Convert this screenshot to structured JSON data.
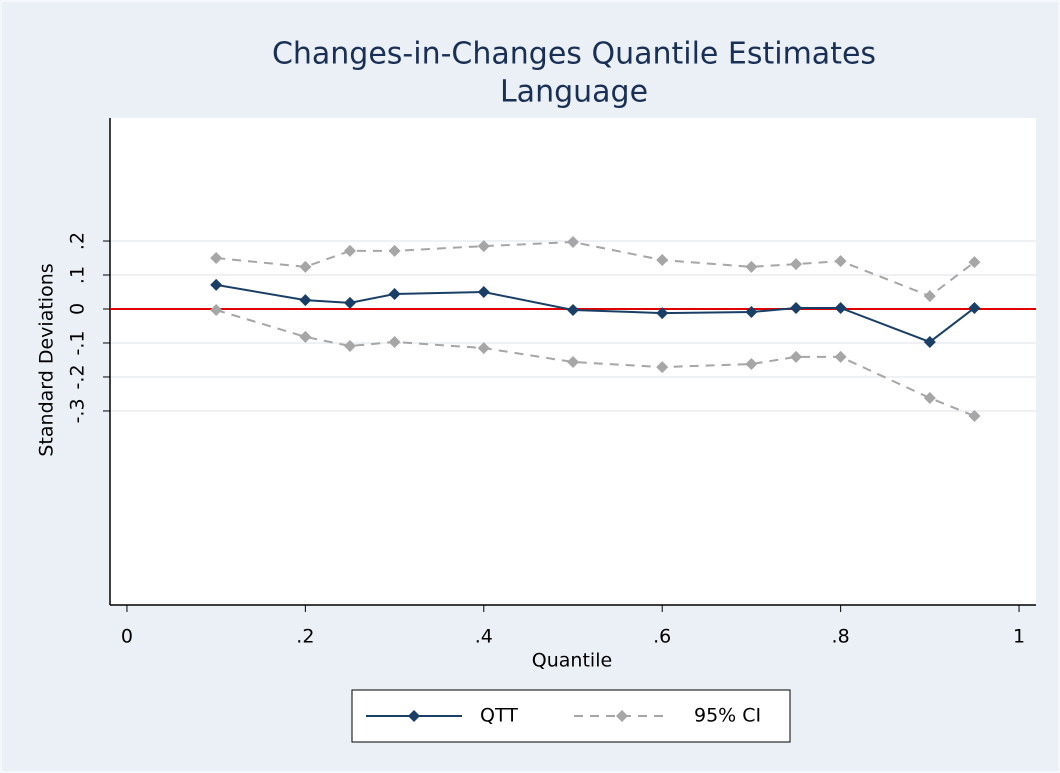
{
  "chart_data": {
    "type": "line",
    "title": "Changes-in-Changes Quantile Estimates",
    "subtitle": "Language",
    "x_label": "Quantile",
    "y_label": "Standard Deviations",
    "x": [
      0.1,
      0.2,
      0.25,
      0.3,
      0.4,
      0.5,
      0.6,
      0.7,
      0.75,
      0.8,
      0.9,
      0.95
    ],
    "series": [
      {
        "name": "QTT",
        "color": "#1a3f66",
        "values": [
          0.071,
          0.026,
          0.018,
          0.044,
          0.05,
          -0.003,
          -0.012,
          -0.009,
          0.003,
          0.003,
          -0.097,
          0.003
        ]
      },
      {
        "name": "95% CI",
        "color": "#a6a6a6",
        "upper": [
          0.15,
          0.124,
          0.171,
          0.171,
          0.185,
          0.197,
          0.144,
          0.124,
          0.132,
          0.141,
          0.038,
          0.138
        ],
        "lower": [
          -0.003,
          -0.082,
          -0.109,
          -0.097,
          -0.115,
          -0.156,
          -0.171,
          -0.162,
          -0.141,
          -0.141,
          -0.262,
          -0.315
        ]
      }
    ],
    "xlim": [
      -0.019,
      1.019
    ],
    "xticks": [
      0,
      {
        "value": 0.2,
        "label": ".2"
      },
      {
        "value": 0.4,
        "label": ".4"
      },
      {
        "value": 0.6,
        "label": ".6"
      },
      {
        "value": 0.8,
        "label": ".8"
      },
      1
    ],
    "ylim": [
      -0.871,
      0.562
    ],
    "yticks": [
      {
        "value": -0.3,
        "label": "-.3"
      },
      {
        "value": -0.2,
        "label": "-.2"
      },
      {
        "value": -0.1,
        "label": "-.1"
      },
      0,
      {
        "value": 0.1,
        "label": ".1"
      },
      {
        "value": 0.2,
        "label": ".2"
      }
    ],
    "grid": true,
    "reference_line": {
      "value": 0,
      "color": "#e00000"
    }
  }
}
